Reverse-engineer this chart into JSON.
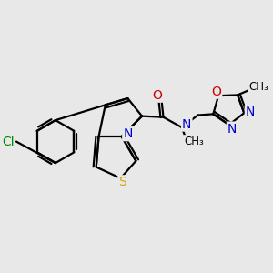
{
  "bg_color": "#e8e8e8",
  "atom_colors": {
    "C": "#000000",
    "N": "#0000cc",
    "O": "#cc0000",
    "S": "#ccaa00",
    "Cl": "#008800"
  },
  "bond_color": "#000000",
  "bond_width": 1.6,
  "font_size_atoms": 10,
  "font_size_small": 8.5
}
